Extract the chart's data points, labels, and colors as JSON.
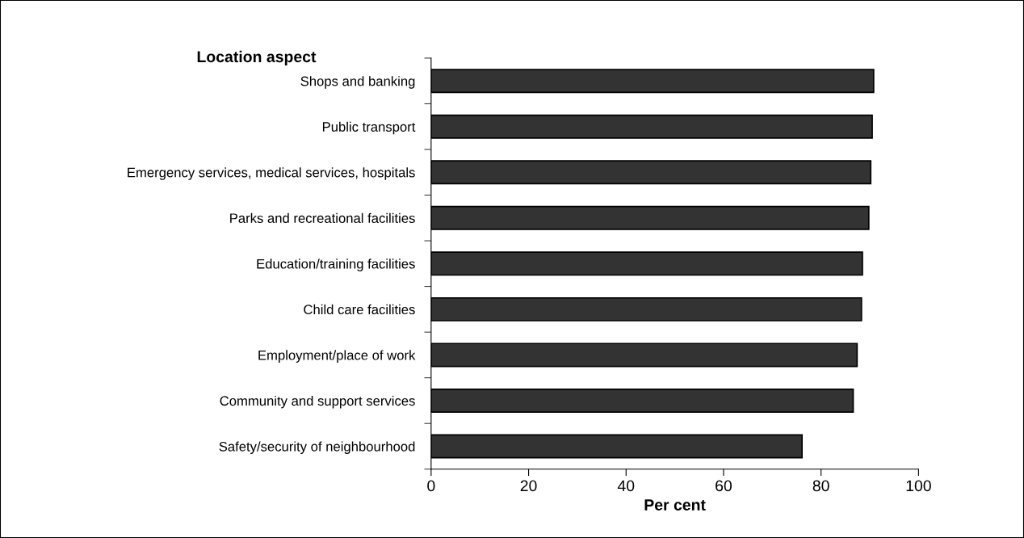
{
  "chart_data": {
    "type": "bar",
    "orientation": "horizontal",
    "title": "Location aspect",
    "xlabel": "Per cent",
    "categories": [
      "Shops and banking",
      "Public transport",
      "Emergency services, medical services, hospitals",
      "Parks and recreational facilities",
      "Education/training facilities",
      "Child care facilities",
      "Employment/place of work",
      "Community and support services",
      "Safety/security of neighbourhood"
    ],
    "values": [
      90.8,
      90.5,
      90.2,
      89.8,
      88.5,
      88.3,
      87.4,
      86.6,
      76.1
    ],
    "color": "#333333",
    "xlim": [
      0,
      100
    ],
    "xticks": [
      0,
      20,
      40,
      60,
      80,
      100
    ],
    "grid": false,
    "legend": false
  }
}
